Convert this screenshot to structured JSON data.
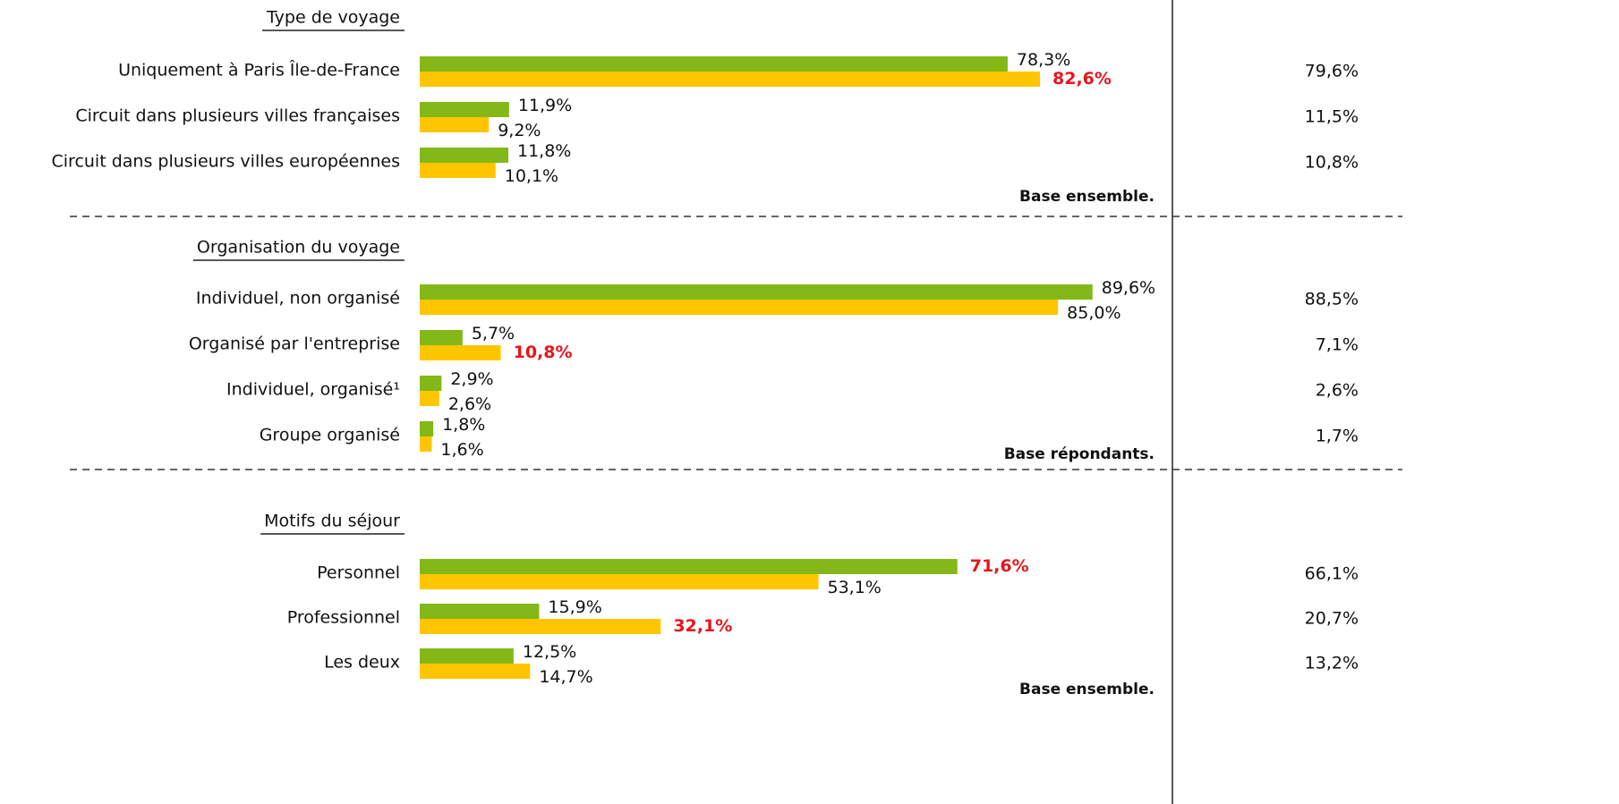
{
  "chart_data": {
    "type": "bar",
    "sections": [
      {
        "title": "Type de voyage",
        "categories": [
          "Uniquement à Paris Île-de-France",
          "Circuit dans plusieurs villes françaises",
          "Circuit dans plusieurs villes européennes"
        ],
        "series": [
          {
            "color": "#84b819",
            "values": [
              78.3,
              11.9,
              11.8
            ],
            "value_labels": [
              "78,3%",
              "11,9%",
              "11,8%"
            ],
            "highlight": [
              false,
              false,
              false
            ]
          },
          {
            "color": "#ffc600",
            "values": [
              82.6,
              9.2,
              10.1
            ],
            "value_labels": [
              "82,6%",
              "9,2%",
              "10,1%"
            ],
            "highlight": [
              true,
              false,
              false
            ]
          }
        ],
        "totals": [
          79.6,
          11.5,
          10.8
        ],
        "total_labels": [
          "79,6%",
          "11,5%",
          "10,8%"
        ],
        "note": "Base ensemble."
      },
      {
        "title": "Organisation du voyage",
        "categories": [
          "Individuel, non organisé",
          "Organisé par l'entreprise",
          "Individuel, organisé¹",
          "Groupe organisé"
        ],
        "series": [
          {
            "color": "#84b819",
            "values": [
              89.6,
              5.7,
              2.9,
              1.8
            ],
            "value_labels": [
              "89,6%",
              "5,7%",
              "2,9%",
              "1,8%"
            ],
            "highlight": [
              false,
              false,
              false,
              false
            ]
          },
          {
            "color": "#ffc600",
            "values": [
              85.0,
              10.8,
              2.6,
              1.6
            ],
            "value_labels": [
              "85,0%",
              "10,8%",
              "2,6%",
              "1,6%"
            ],
            "highlight": [
              false,
              true,
              false,
              false
            ]
          }
        ],
        "totals": [
          88.5,
          7.1,
          2.6,
          1.7
        ],
        "total_labels": [
          "88,5%",
          "7,1%",
          "2,6%",
          "1,7%"
        ],
        "note": "Base répondants."
      },
      {
        "title": "Motifs du séjour",
        "categories": [
          "Personnel",
          "Professionnel",
          "Les deux"
        ],
        "series": [
          {
            "color": "#84b819",
            "values": [
              71.6,
              15.9,
              12.5
            ],
            "value_labels": [
              "71,6%",
              "15,9%",
              "12,5%"
            ],
            "highlight": [
              true,
              false,
              false
            ]
          },
          {
            "color": "#ffc600",
            "values": [
              53.1,
              32.1,
              14.7
            ],
            "value_labels": [
              "53,1%",
              "32,1%",
              "14,7%"
            ],
            "highlight": [
              false,
              true,
              false
            ]
          }
        ],
        "totals": [
          66.1,
          20.7,
          13.2
        ],
        "total_labels": [
          "66,1%",
          "20,7%",
          "13,2%"
        ],
        "note": "Base ensemble."
      }
    ]
  }
}
